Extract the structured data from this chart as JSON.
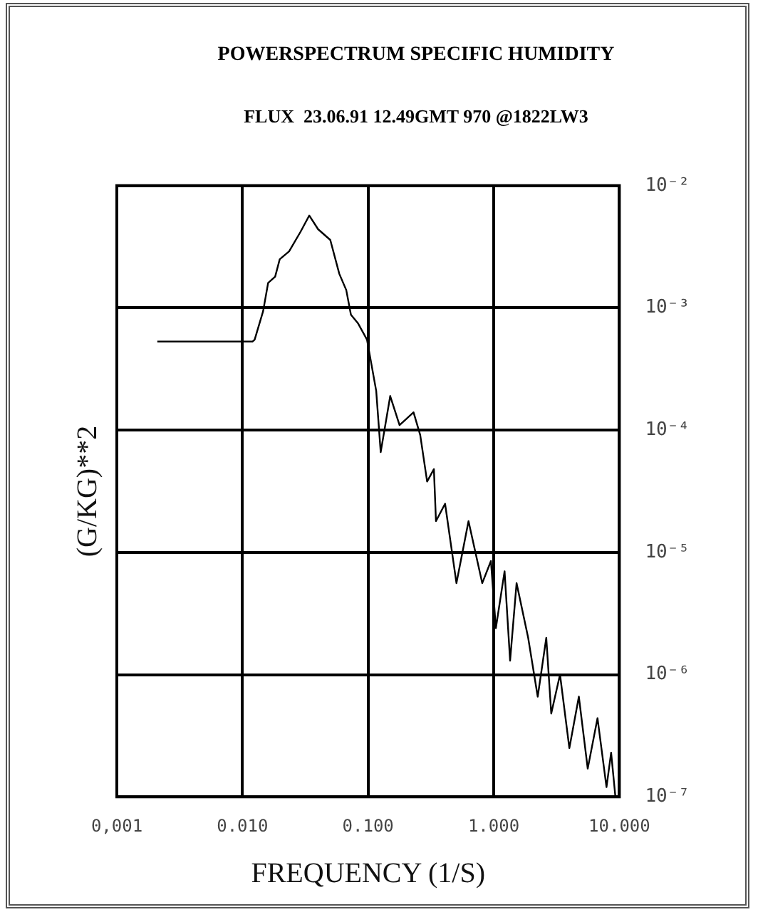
{
  "chart_data": {
    "type": "line",
    "title": "POWERSPECTRUM SPECIFIC HUMIDITY",
    "subtitle": "FLUX  23.06.91 12.49GMT 970 @1822LW3",
    "xlabel": "FREQUENCY (1/S)",
    "ylabel": "(G/KG)**2",
    "log": "xy",
    "xlim": [
      0.001,
      10
    ],
    "xticks": [
      {
        "value": 0.001,
        "label": "0,001"
      },
      {
        "value": 0.01,
        "label": "0.010"
      },
      {
        "value": 0.1,
        "label": "0.100"
      },
      {
        "value": 1,
        "label": "1.000"
      },
      {
        "value": 10,
        "label": "10.000"
      }
    ],
    "ylim": [
      1e-07,
      0.01
    ],
    "yticks": [
      {
        "value": 0.01,
        "label": "10⁻²"
      },
      {
        "value": 0.001,
        "label": "10⁻³"
      },
      {
        "value": 0.0001,
        "label": "10⁻⁴"
      },
      {
        "value": 1e-05,
        "label": "10⁻⁵"
      },
      {
        "value": 1e-06,
        "label": "10⁻⁶"
      },
      {
        "value": 1e-07,
        "label": "10⁻⁷"
      }
    ],
    "grid": true,
    "legend": false,
    "marker": "none",
    "line_style": "solid",
    "series": [
      {
        "color": "#000000",
        "x": [
          0.0021,
          0.012,
          0.0125,
          0.0146,
          0.016,
          0.0182,
          0.0198,
          0.0235,
          0.029,
          0.034,
          0.04,
          0.05,
          0.059,
          0.067,
          0.073,
          0.083,
          0.098,
          0.116,
          0.126,
          0.15,
          0.178,
          0.23,
          0.26,
          0.295,
          0.334,
          0.347,
          0.41,
          0.505,
          0.63,
          0.81,
          0.95,
          1.04,
          1.22,
          1.35,
          1.52,
          1.88,
          2.24,
          2.62,
          2.87,
          3.37,
          4.0,
          4.76,
          5.6,
          6.7,
          7.9,
          8.6,
          9.3
        ],
        "values": [
          0.00053,
          0.00053,
          0.00055,
          0.00094,
          0.0016,
          0.0018,
          0.0025,
          0.0029,
          0.0042,
          0.0057,
          0.0044,
          0.0036,
          0.0019,
          0.0014,
          0.00088,
          0.00075,
          0.00055,
          0.00021,
          6.6e-05,
          0.00019,
          0.00011,
          0.00014,
          9.1e-05,
          3.8e-05,
          4.8e-05,
          1.8e-05,
          2.5e-05,
          5.6e-06,
          1.8e-05,
          5.6e-06,
          8.5e-06,
          2.4e-06,
          7e-06,
          1.3e-06,
          5.6e-06,
          2e-06,
          6.6e-07,
          2e-06,
          4.8e-07,
          1e-06,
          2.5e-07,
          6.6e-07,
          1.7e-07,
          4.4e-07,
          1.2e-07,
          2.3e-07,
          1e-07
        ]
      }
    ]
  }
}
